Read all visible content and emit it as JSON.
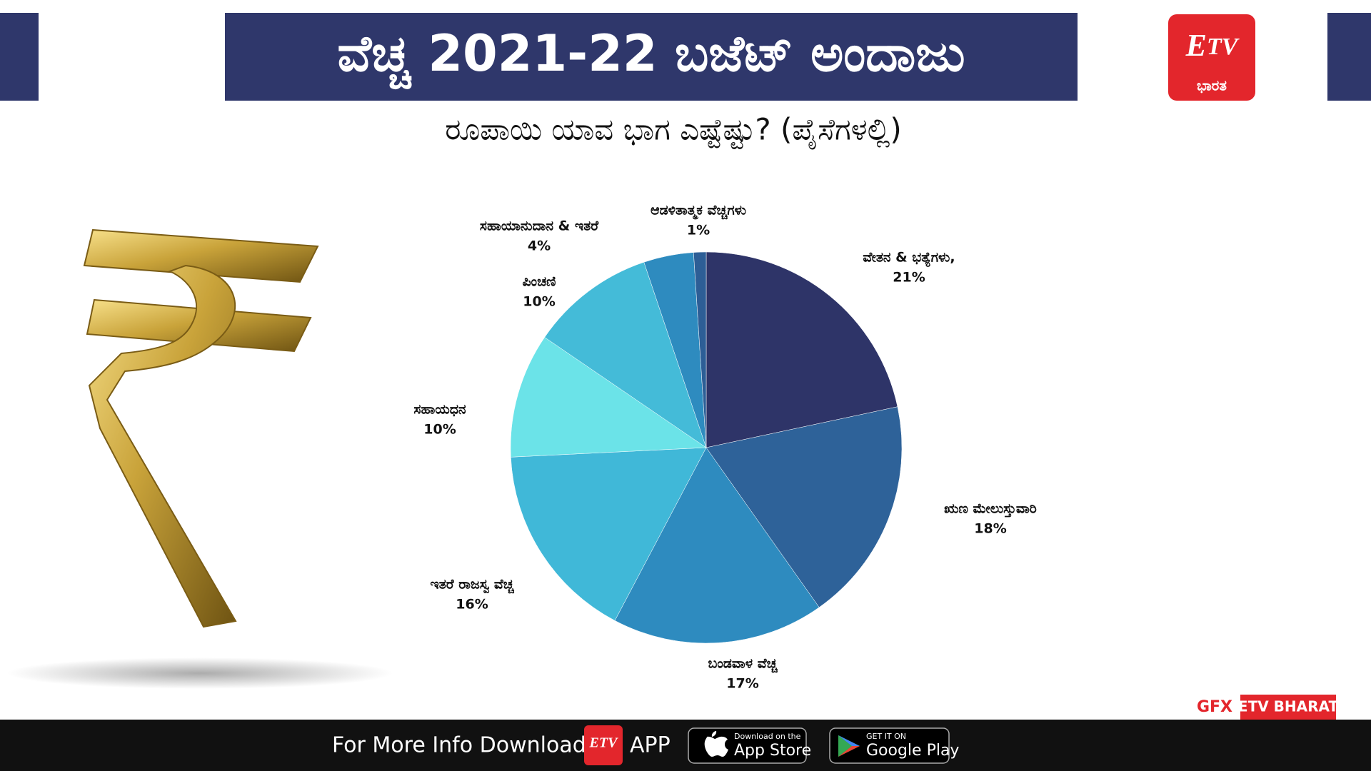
{
  "chart_data": {
    "type": "pie",
    "title": "ವೆಚ್ಚ 2021-22 ಬಜೆಟ್ ಅಂದಾಜು",
    "subtitle": "ರೂಪಾಯಿ ಯಾವ ಭಾಗ ಎಷ್ಟೆಷ್ಟು? (ಪೈಸೆಗಳಲ್ಲಿ)",
    "categories": [
      "ವೇತನ & ಭತ್ಯೆಗಳು,",
      "ಋಣ ಮೇಲುಸ್ತುವಾರಿ",
      "ಬಂಡವಾಳ ವೆಚ್ಚ",
      "ಇತರೆ ರಾಜಸ್ವ ವೆಚ್ಚ",
      "ಸಹಾಯಧನ",
      "ಪಿಂಚಣಿ",
      "ಸಹಾಯಾನುದಾನ & ಇತರೆ",
      "ಆಡಳಿತಾತ್ಮಕ ವೆಚ್ಚಗಳು"
    ],
    "values": [
      21,
      18,
      17,
      16,
      10,
      10,
      4,
      1
    ],
    "value_labels": [
      "21%",
      "18%",
      "17%",
      "16%",
      "10%",
      "10%",
      "4%",
      "1%"
    ],
    "colors": [
      "#2e3468",
      "#2e6299",
      "#2e8bbf",
      "#40b8d8",
      "#6be3e8",
      "#44bbd8",
      "#2e8bbf",
      "#2d5e96"
    ]
  },
  "logo": {
    "text": "ಭಾರತ"
  },
  "credit": {
    "gfx": "GFX",
    "brand": "ETV BHARAT"
  },
  "footer": {
    "text": "For More Info Download",
    "app": "APP",
    "appstore_small": "Download on the",
    "appstore": "App Store",
    "play_small": "GET IT ON",
    "play": "Google Play"
  }
}
